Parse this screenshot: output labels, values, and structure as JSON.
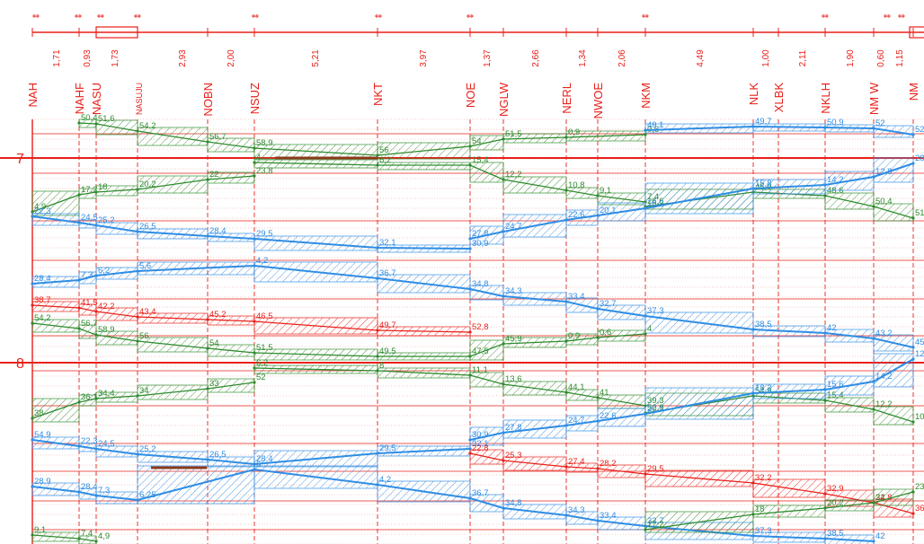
{
  "colors": {
    "axis": "#e8201a",
    "green": "#2e8b2e",
    "blue": "#2f8de4",
    "red": "#e8201a",
    "brown": "#8b3a1a"
  },
  "track_marks": [
    "⇔",
    "⇔",
    "⇔",
    "⇔",
    "⇔",
    "⇔",
    "⇔",
    "⇔",
    "⇔",
    "⇔",
    "⇔"
  ],
  "stations": [
    {
      "name": "NAH"
    },
    {
      "name": "NAHF"
    },
    {
      "name": "NASU"
    },
    {
      "name": "NASUJU",
      "small": true
    },
    {
      "name": "NOBN"
    },
    {
      "name": "NSUZ"
    },
    {
      "name": "NKT"
    },
    {
      "name": "NOE"
    },
    {
      "name": "NGLW"
    },
    {
      "name": "NERL"
    },
    {
      "name": "NWOE"
    },
    {
      "name": "NKM"
    },
    {
      "name": "NLK"
    },
    {
      "name": "XLBK"
    },
    {
      "name": "NKLH"
    },
    {
      "name": "NM W"
    },
    {
      "name": "NM"
    }
  ],
  "distances": [
    "1,71",
    "0,93",
    "1,73",
    "2,93",
    "2,00",
    "5,21",
    "3,97",
    "1,37",
    "2,66",
    "1,34",
    "2,06",
    "4,49",
    "1,00",
    "2,11",
    "1,90",
    "0,60",
    "1,15"
  ],
  "hours": [
    "7",
    "8"
  ],
  "times": {
    "green": [
      "50,4",
      "51,6",
      "54,2",
      "56,7",
      "58,9",
      "56",
      "54",
      "51,5",
      "0,9",
      "0,6",
      "4",
      "6,2",
      "15,4",
      "12,2",
      "10,8",
      "9,1",
      "7,4",
      "4,9",
      "17,2",
      "18",
      "20,2",
      "22",
      "23,8",
      "26,6",
      "45,9",
      "48,6",
      "50,4",
      "51,6",
      "54,2",
      "56,7",
      "58,9",
      "56",
      "54",
      "51,5",
      "49,5",
      "47,5",
      "45,9",
      "0,9",
      "0,6",
      "4",
      "6,2",
      "8",
      "11,1",
      "13,6",
      "44,1",
      "41",
      "39,3",
      "38",
      "36,1",
      "34,4",
      "34",
      "33",
      "52",
      "52,9",
      "54,9",
      "15,4",
      "12,2",
      "10,8",
      "9,1",
      "7,4",
      "4,9",
      "17,2",
      "18",
      "20,2",
      "22",
      "23,8",
      "26,6",
      "36,1",
      "34,4",
      "34",
      "33",
      "44,1",
      "41",
      "39,3",
      "38",
      "45,9",
      "48,6",
      "47,5"
    ],
    "blue": [
      "22,3",
      "24,5",
      "25,2",
      "26,5",
      "28,4",
      "29,5",
      "32,1",
      "30,9",
      "27,8",
      "24,7",
      "22,6",
      "20,1",
      "18,2",
      "15,8",
      "14,2",
      "12,8",
      "28,9",
      "28,4",
      "7,3",
      "6,2",
      "5,6",
      "4,2",
      "36,7",
      "34,8",
      "34,3",
      "33,4",
      "32,7",
      "37,3",
      "38,5",
      "42",
      "43,2",
      "45,5",
      "49,1",
      "49,7",
      "50,9",
      "52",
      "52,9",
      "54,9",
      "22,3",
      "24,5",
      "25,2",
      "26,5",
      "28,4",
      "29,5",
      "32,1",
      "30,9",
      "27,8",
      "24,7",
      "22,6",
      "20,1",
      "18,2",
      "15,6",
      "14,2",
      "12,8",
      "28,9",
      "28,4",
      "7,3",
      "6,25",
      "6",
      "4,2",
      "36,7",
      "34,8",
      "34,3",
      "33,4",
      "32,7",
      "37,3",
      "38,5",
      "42",
      "43,2",
      "45,9",
      "49,1",
      "49,7",
      "54,9",
      "0,4"
    ],
    "red": [
      "38,7",
      "41,5",
      "42,2",
      "43,4",
      "45,2",
      "46,5",
      "49,7",
      "52,8",
      "22,8",
      "25,3",
      "27,4",
      "28,2",
      "29,5",
      "32,2",
      "32,9",
      "34,8",
      "36,2",
      "38",
      "39",
      "39,6",
      "41"
    ]
  }
}
